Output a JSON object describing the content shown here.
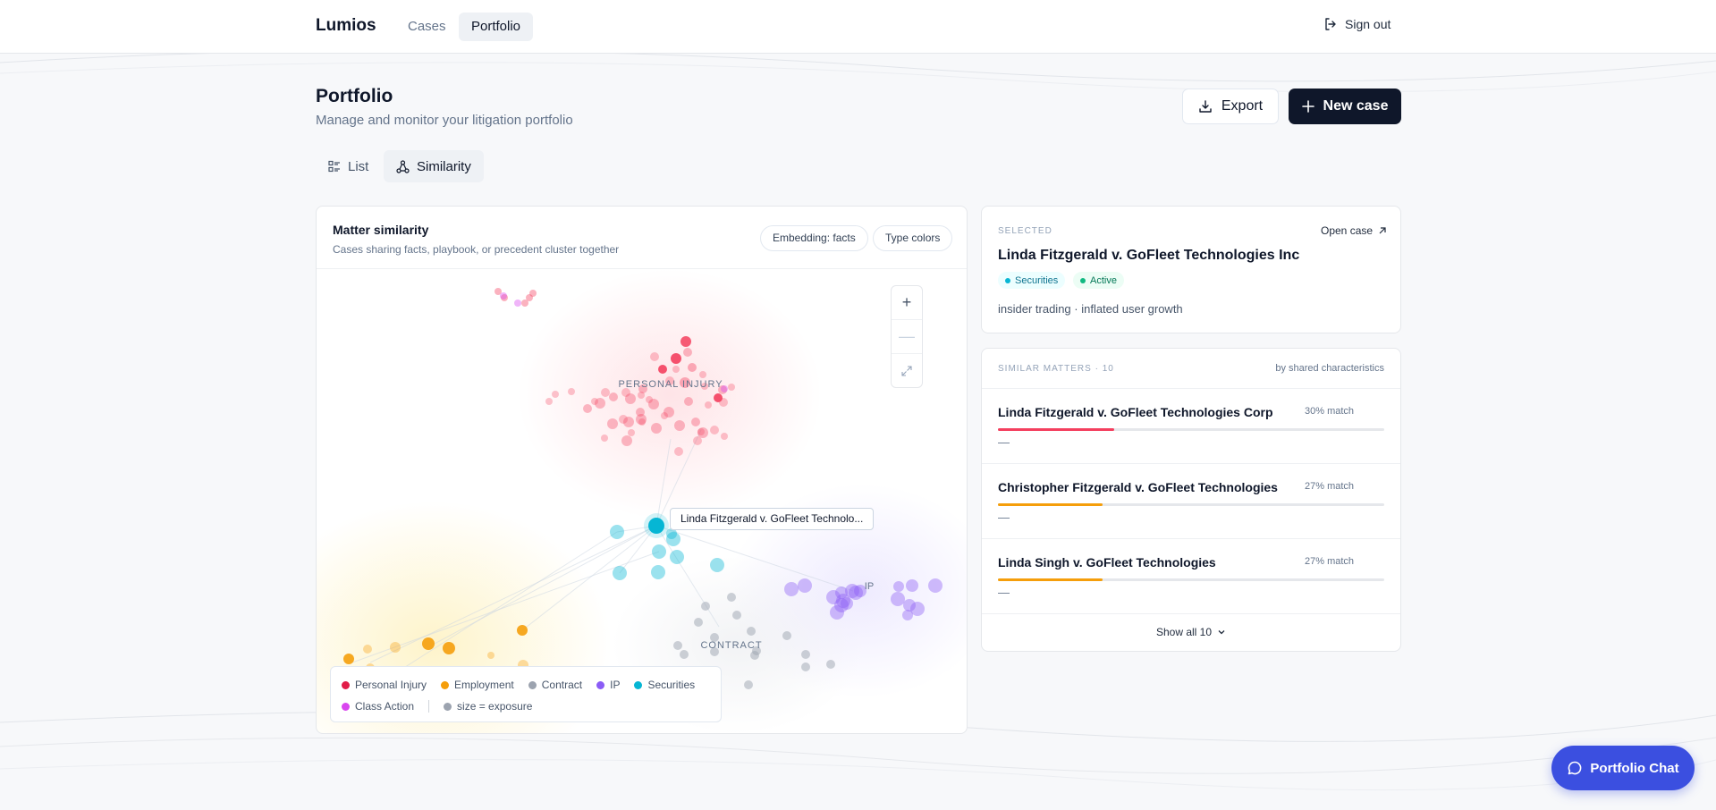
{
  "app": {
    "brand": "Lumios",
    "nav": [
      {
        "label": "Cases"
      },
      {
        "label": "Portfolio"
      }
    ],
    "sign_out": "Sign out"
  },
  "page": {
    "title": "Portfolio",
    "subtitle": "Manage and monitor your litigation portfolio",
    "export_label": "Export",
    "new_case_label": "New case",
    "views": [
      {
        "label": "List"
      },
      {
        "label": "Similarity"
      }
    ]
  },
  "map": {
    "title": "Matter similarity",
    "subtitle": "Cases sharing facts, playbook, or precedent cluster together",
    "embedding_pill": "Embedding: facts",
    "colors_pill": "Type colors",
    "zoom_in": "+",
    "zoom_out": "—",
    "cluster_labels": {
      "personal_injury": "PERSONAL INJURY",
      "ip": "IP",
      "contract": "CONTRACT"
    },
    "tooltip": "Linda Fitzgerald v. GoFleet Technolo...",
    "legend": [
      {
        "label": "Personal Injury",
        "color": "#e11d48"
      },
      {
        "label": "Employment",
        "color": "#f59e0b"
      },
      {
        "label": "Contract",
        "color": "#9ca3af"
      },
      {
        "label": "IP",
        "color": "#8b5cf6"
      },
      {
        "label": "Securities",
        "color": "#06b6d4"
      },
      {
        "label": "Class Action",
        "color": "#d946ef"
      }
    ],
    "legend_size": "size = exposure"
  },
  "selected": {
    "label": "SELECTED",
    "open_case": "Open case",
    "title": "Linda Fitzgerald v. GoFleet Technologies Inc",
    "tag_type": "Securities",
    "tag_status": "Active",
    "description": "insider trading · inflated user growth"
  },
  "similar": {
    "label": "SIMILAR MATTERS · 10",
    "by": "by shared characteristics",
    "items": [
      {
        "name": "Linda Fitzgerald v. GoFleet Technologies Corp",
        "match": "30% match",
        "pct": 30,
        "color": "#f43f5e",
        "detail": "—"
      },
      {
        "name": "Christopher Fitzgerald v. GoFleet Technologies",
        "match": "27% match",
        "pct": 27,
        "color": "#f59e0b",
        "detail": "—"
      },
      {
        "name": "Linda Singh v. GoFleet Technologies",
        "match": "27% match",
        "pct": 27,
        "color": "#f59e0b",
        "detail": "—"
      }
    ],
    "show_all": "Show all 10"
  },
  "chat": {
    "label": "Portfolio Chat"
  }
}
